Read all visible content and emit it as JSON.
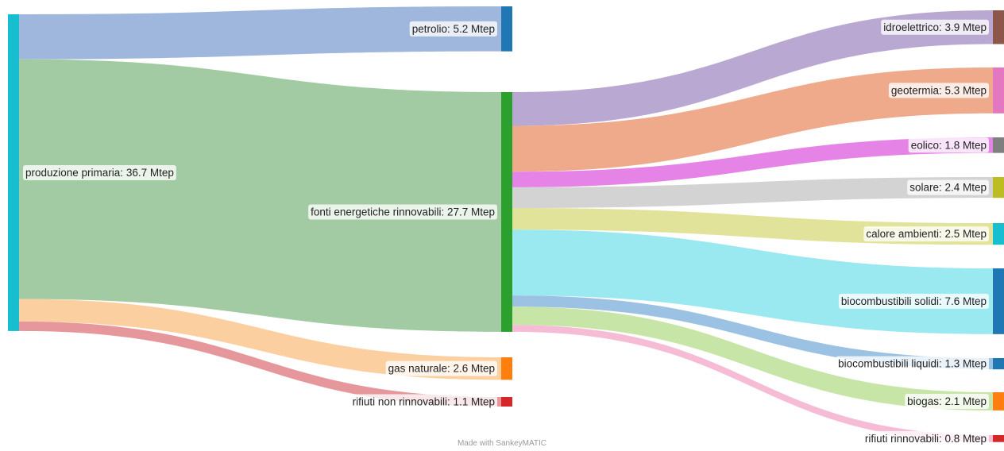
{
  "diagram": {
    "type": "sankey",
    "unit": "Mtep",
    "nodes": [
      {
        "id": "prod",
        "label": "produzione primaria: 36.7 Mtep",
        "color": "#17becf"
      },
      {
        "id": "petrolio",
        "label": "petrolio: 5.2 Mtep",
        "color": "#1f77b4"
      },
      {
        "id": "fer",
        "label": "fonti energetiche rinnovabili: 27.7 Mtep",
        "color": "#2ca02c"
      },
      {
        "id": "gas",
        "label": "gas naturale: 2.6 Mtep",
        "color": "#ff7f0e"
      },
      {
        "id": "rnr",
        "label": "rifiuti non rinnovabili: 1.1 Mtep",
        "color": "#d62728"
      },
      {
        "id": "idro",
        "label": "idroelettrico: 3.9 Mtep",
        "color": "#8c564b"
      },
      {
        "id": "geo",
        "label": "geotermia: 5.3 Mtep",
        "color": "#e377c2"
      },
      {
        "id": "eol",
        "label": "eolico: 1.8 Mtep",
        "color": "#7f7f7f"
      },
      {
        "id": "sol",
        "label": "solare: 2.4 Mtep",
        "color": "#bcbd22"
      },
      {
        "id": "cal",
        "label": "calore ambienti: 2.5 Mtep",
        "color": "#17becf"
      },
      {
        "id": "bsol",
        "label": "biocombustibili solidi: 7.6 Mtep",
        "color": "#1f77b4"
      },
      {
        "id": "bliq",
        "label": "biocombustibili liquidi: 1.3 Mtep",
        "color": "#1f77b4"
      },
      {
        "id": "biog",
        "label": "biogas: 2.1 Mtep",
        "color": "#ff7f0e"
      },
      {
        "id": "rr",
        "label": "rifiuti rinnovabili: 0.8 Mtep",
        "color": "#d62728"
      }
    ],
    "flows": [
      {
        "from": "prod",
        "to": "petrolio",
        "value": 5.2,
        "color": "#9fb7dc"
      },
      {
        "from": "prod",
        "to": "fer",
        "value": 27.7,
        "color": "#a2cba4"
      },
      {
        "from": "prod",
        "to": "gas",
        "value": 2.6,
        "color": "#fccfa0"
      },
      {
        "from": "prod",
        "to": "rnr",
        "value": 1.1,
        "color": "#e5979b"
      },
      {
        "from": "fer",
        "to": "idro",
        "value": 3.9,
        "color": "#b9a9d2"
      },
      {
        "from": "fer",
        "to": "geo",
        "value": 5.3,
        "color": "#eeaa8a"
      },
      {
        "from": "fer",
        "to": "eol",
        "value": 1.8,
        "color": "#e683e6"
      },
      {
        "from": "fer",
        "to": "sol",
        "value": 2.4,
        "color": "#d3d3d3"
      },
      {
        "from": "fer",
        "to": "cal",
        "value": 2.5,
        "color": "#e2e39a"
      },
      {
        "from": "fer",
        "to": "bsol",
        "value": 7.6,
        "color": "#9ae8f0"
      },
      {
        "from": "fer",
        "to": "bliq",
        "value": 1.3,
        "color": "#9bc2e2"
      },
      {
        "from": "fer",
        "to": "biog",
        "value": 2.1,
        "color": "#c7e5a7"
      },
      {
        "from": "fer",
        "to": "rr",
        "value": 0.8,
        "color": "#f6bcd5"
      }
    ]
  },
  "footer": {
    "credit": "Made with SankeyMATIC"
  }
}
